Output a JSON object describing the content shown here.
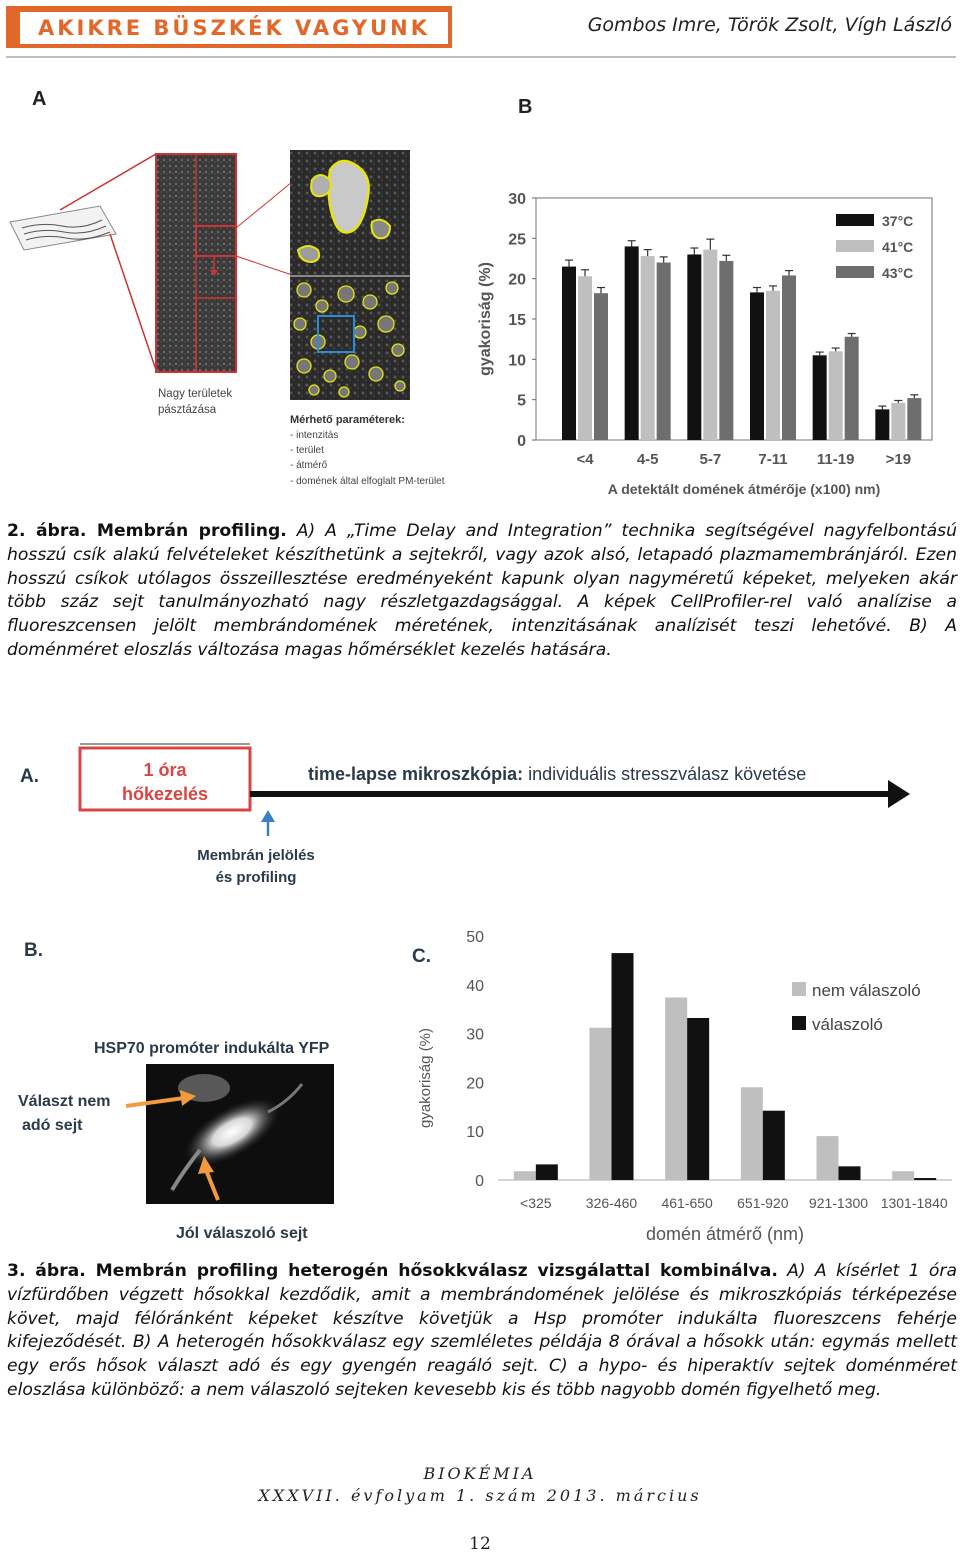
{
  "header": {
    "section_title": "AKIKRE BÜSZKÉK VAGYUNK",
    "authors": "Gombos Imre, Török Zsolt, Vígh László"
  },
  "figure2": {
    "panel_a_label": "A",
    "panel_b_label": "B",
    "scan_label_line1": "Nagy területek",
    "scan_label_line2": "pásztázása",
    "params_title": "Mérhető paraméterek:",
    "params": [
      "- intenzitás",
      "- terület",
      "- átmérő",
      "- domének által elfoglalt PM-terület"
    ],
    "caption_bold": "2. ábra. Membrán profiling.",
    "caption_text": " A) A „Time Delay and Integration” technika segítségével nagyfelbontású hosszú csík alakú felvételeket készíthetünk a sejtekről, vagy azok alsó, letapadó plazmamembránjáról. Ezen hosszú csíkok utólagos összeillesztése eredményeként kapunk olyan nagyméretű képeket, melyeken akár több száz sejt tanulmányozható nagy részletgazdagsággal. A képek CellProfiler-rel való analízise a fluoreszcensen jelölt membrándomének méretének, intenzitásának analízisét teszi lehetővé. B) A doménméret eloszlás változása magas hőmérséklet kezelés hatására."
  },
  "figure3": {
    "panel_a_label": "A.",
    "panel_b_label": "B.",
    "panel_c_label": "C.",
    "box_line1": "1 óra",
    "box_line2": "hőkezelés",
    "timelapse_bold": "time-lapse mikroszkópia:",
    "timelapse_rest": " individuális stresszválasz követése",
    "marker_line1": "Membrán jelölés",
    "marker_line2": "és profiling",
    "micro_title": "HSP70 promóter indukálta YFP",
    "nonresp_line1": "Választ nem",
    "nonresp_line2": "adó sejt",
    "resp_label": "Jól válaszoló sejt",
    "caption_bold": "3. ábra. Membrán profiling heterogén hősokkválasz vizsgálattal kombinálva.",
    "caption_text": " A) A kísérlet 1 óra vízfürdőben végzett hősokkal kezdődik, amit a membrándomének jelölése és mikroszkópiás térképezése követ, majd félóránként képeket készítve követjük a Hsp promóter indukálta fluoreszcens fehérje kifejeződését. B) A heterogén hősokkválasz egy szemléletes példája 8 órával a hősokk után: egymás mellett egy erős hősok választ adó és egy gyengén reagáló sejt. C) a hypo- és hiperaktív sejtek doménméret eloszlása különböző: a nem válaszoló sejteken kevesebb kis és több nagyobb domén figyelhető meg."
  },
  "chart_data": [
    {
      "type": "bar",
      "title": "",
      "xlabel": "A detektált domének átmérője (x100) nm)",
      "ylabel": "gyakoriság (%)",
      "ylim": [
        0,
        30
      ],
      "yticks": [
        "0",
        "5",
        "10",
        "15",
        "20",
        "25",
        "30"
      ],
      "categories": [
        "<4",
        "4-5",
        "5-7",
        "7-11",
        "11-19",
        ">19"
      ],
      "series": [
        {
          "name": "37°C",
          "color": "#111111",
          "values": [
            21.5,
            24,
            23,
            18.3,
            10.5,
            3.8
          ]
        },
        {
          "name": "41°C",
          "color": "#bfbfbf",
          "values": [
            20.3,
            22.8,
            23.6,
            18.5,
            11,
            4.6
          ]
        },
        {
          "name": "43°C",
          "color": "#6e6e6e",
          "values": [
            18.2,
            22,
            22.2,
            20.4,
            12.8,
            5.2
          ]
        }
      ],
      "errors": [
        [
          0.8,
          0.7,
          0.8,
          0.6,
          0.4,
          0.4
        ],
        [
          0.8,
          0.8,
          1.3,
          0.6,
          0.4,
          0.3
        ],
        [
          0.7,
          0.7,
          0.7,
          0.6,
          0.4,
          0.4
        ]
      ],
      "legend": "top-right",
      "grid": false
    },
    {
      "type": "bar",
      "title": "",
      "xlabel": "domén átmérő (nm)",
      "ylabel": "gyakoriság (%)",
      "ylim": [
        0,
        50
      ],
      "yticks": [
        "0",
        "10",
        "20",
        "30",
        "40",
        "50"
      ],
      "categories": [
        "<325",
        "326-460",
        "461-650",
        "651-920",
        "921-1300",
        "1301-1840"
      ],
      "series": [
        {
          "name": "nem válaszoló",
          "color": "#bfbfbf",
          "values": [
            1.8,
            31.2,
            37.4,
            19,
            9,
            1.8
          ]
        },
        {
          "name": "válaszoló",
          "color": "#111111",
          "values": [
            3.2,
            46.5,
            33.2,
            14.2,
            2.8,
            0.4
          ]
        }
      ],
      "legend": "top-right",
      "grid": false
    }
  ],
  "footer": {
    "journal": "BIOKÉMIA",
    "issue": "XXXVII. évfolyam 1. szám 2013. március",
    "page": "12"
  }
}
